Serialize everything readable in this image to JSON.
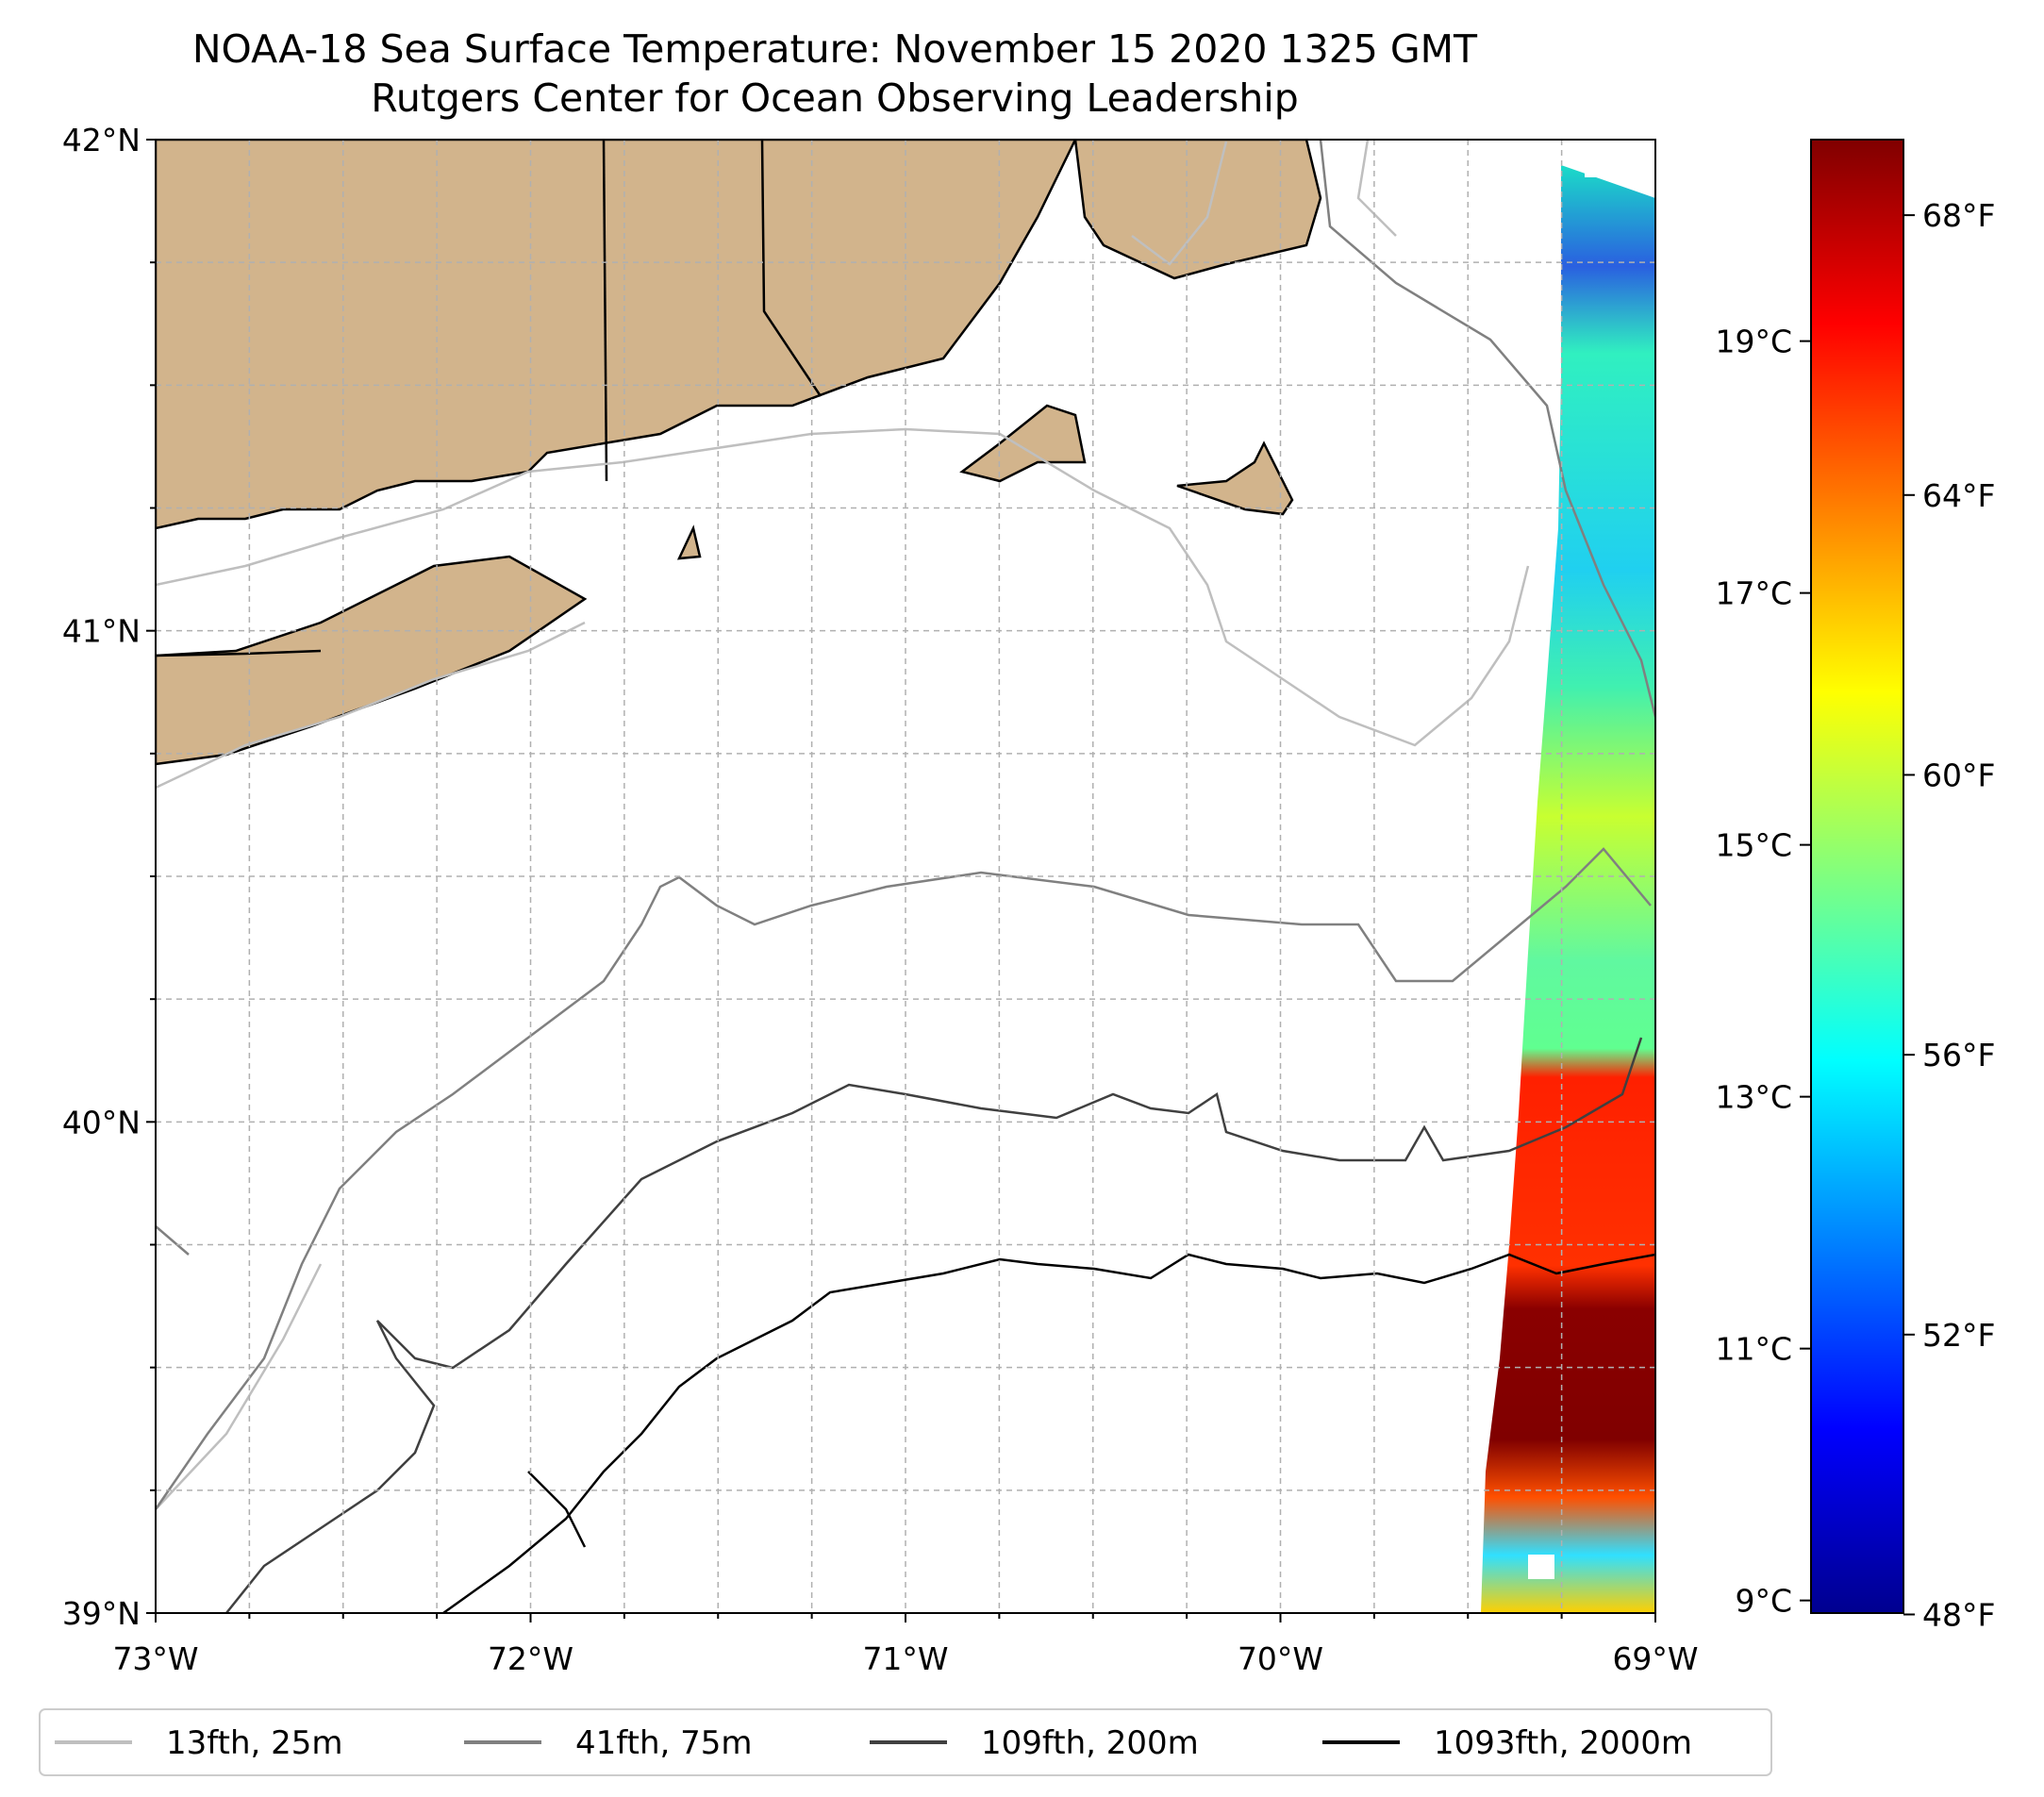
{
  "title": {
    "line1": "NOAA-18 Sea Surface Temperature: November 15 2020 1325 GMT",
    "line2": "Rutgers Center for Ocean Observing Leadership"
  },
  "map": {
    "lon_range": [
      -73,
      -69
    ],
    "lat_range": [
      39,
      42
    ],
    "x_ticks": [
      {
        "value": -73,
        "label": "73°W"
      },
      {
        "value": -72,
        "label": "72°W"
      },
      {
        "value": -71,
        "label": "71°W"
      },
      {
        "value": -70,
        "label": "70°W"
      },
      {
        "value": -69,
        "label": "69°W"
      }
    ],
    "y_ticks": [
      {
        "value": 42,
        "label": "42°N"
      },
      {
        "value": 41,
        "label": "41°N"
      },
      {
        "value": 40,
        "label": "40°N"
      },
      {
        "value": 39,
        "label": "39°N"
      }
    ],
    "grid": true,
    "land_color": "#d2b48c",
    "coast_color": "#000000"
  },
  "colorbar": {
    "colormap": "jet",
    "celsius_range": [
      8.9,
      20.6
    ],
    "celsius_ticks": [
      {
        "value": 9,
        "label": "9°C"
      },
      {
        "value": 11,
        "label": "11°C"
      },
      {
        "value": 13,
        "label": "13°C"
      },
      {
        "value": 15,
        "label": "15°C"
      },
      {
        "value": 17,
        "label": "17°C"
      },
      {
        "value": 19,
        "label": "19°C"
      }
    ],
    "fahrenheit_ticks": [
      {
        "value": 48,
        "label": "48°F"
      },
      {
        "value": 52,
        "label": "52°F"
      },
      {
        "value": 56,
        "label": "56°F"
      },
      {
        "value": 60,
        "label": "60°F"
      },
      {
        "value": 64,
        "label": "64°F"
      },
      {
        "value": 68,
        "label": "68°F"
      }
    ]
  },
  "legend": {
    "placement": "bottom",
    "items": [
      {
        "label": "13fth, 25m",
        "color": "#bfbfbf"
      },
      {
        "label": "41fth, 75m",
        "color": "#808080"
      },
      {
        "label": "109fth, 200m",
        "color": "#404040"
      },
      {
        "label": "1093fth, 2000m",
        "color": "#000000"
      }
    ]
  }
}
